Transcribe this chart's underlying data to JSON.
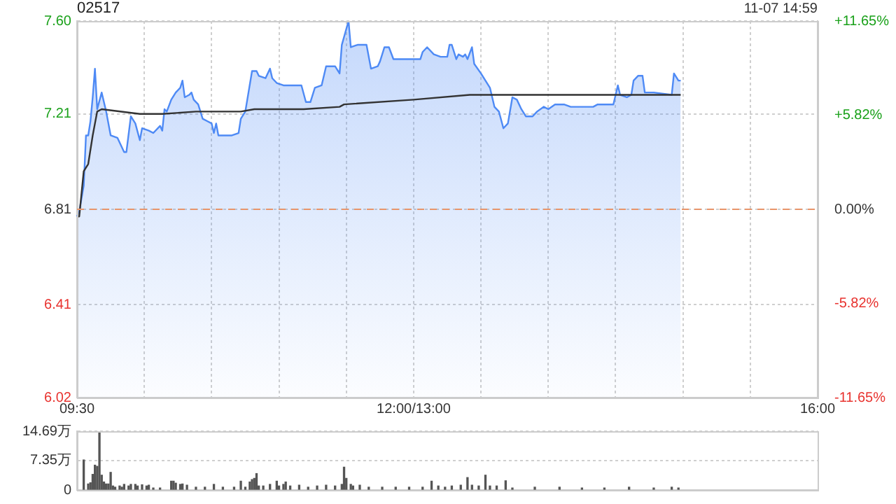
{
  "chart_data": [
    {
      "type": "area",
      "title": "02517",
      "annotations": [
        "11-07 14:59"
      ],
      "categories": [
        "09:30",
        null,
        null,
        null,
        null,
        null,
        null,
        null,
        null,
        null,
        null,
        null,
        null,
        null,
        null,
        null,
        null,
        null,
        null,
        null,
        null,
        null,
        null,
        null,
        null,
        null,
        null,
        null,
        null,
        null,
        null,
        null,
        null,
        null,
        null,
        null,
        null,
        null,
        null,
        null,
        null,
        null,
        null,
        null,
        null,
        null,
        null,
        null,
        null,
        null,
        null,
        null,
        null,
        null,
        null,
        null,
        null,
        null,
        null,
        null,
        null,
        null,
        null,
        null,
        null,
        null,
        null,
        null,
        null,
        null,
        null,
        null,
        null,
        null,
        null,
        null,
        null,
        null,
        null,
        null,
        null,
        null,
        null,
        null,
        null,
        null,
        null,
        null,
        null,
        null,
        null,
        null,
        null,
        null,
        null,
        null,
        null,
        null,
        null,
        null,
        null,
        null,
        null,
        null,
        null,
        null,
        null,
        null,
        null,
        null,
        null,
        null,
        null,
        null,
        null,
        null,
        null,
        null,
        null,
        null,
        null,
        null,
        null,
        null,
        null,
        null,
        null,
        null,
        null,
        null,
        null,
        null,
        null,
        null,
        null,
        null,
        null,
        null,
        null,
        null,
        null,
        null,
        null,
        null,
        null,
        null,
        null,
        null,
        null,
        null,
        "12:00/13:00",
        null,
        null,
        null,
        null,
        null,
        null,
        null,
        null,
        null,
        null,
        null,
        null,
        null,
        null,
        null,
        null,
        null,
        null,
        null,
        null,
        null,
        null,
        null,
        null,
        null,
        null,
        null,
        null,
        null,
        null,
        null,
        null,
        null,
        null,
        null,
        null,
        null,
        null,
        null,
        null,
        null,
        null,
        null,
        null,
        null,
        null,
        null,
        null,
        null,
        null,
        null,
        null,
        null,
        null,
        null,
        null,
        null,
        null,
        null,
        null,
        null,
        null,
        null,
        null,
        null,
        null,
        null,
        null,
        null,
        null,
        null,
        null,
        null,
        null,
        null,
        null,
        null,
        null,
        null,
        null,
        null,
        null,
        null,
        null,
        null,
        null,
        null,
        null,
        null,
        null,
        null,
        null,
        null,
        null,
        null,
        null,
        null,
        null,
        null,
        null,
        null,
        null,
        null,
        null,
        null,
        null,
        null,
        null,
        null,
        null,
        null,
        null,
        null,
        null,
        null,
        null,
        null,
        null,
        null,
        null,
        null,
        null,
        null,
        null,
        null,
        null,
        null,
        null,
        null,
        null,
        null,
        null,
        null,
        null,
        null,
        null,
        null,
        null,
        null,
        null,
        null,
        null,
        null,
        null,
        null,
        null,
        null,
        null,
        null,
        null,
        null,
        null,
        null,
        null,
        null,
        null,
        null,
        null,
        null,
        null,
        null,
        null,
        null,
        null,
        null,
        null,
        null,
        null,
        null,
        null,
        null,
        null,
        null,
        null,
        null,
        null,
        null,
        null,
        null,
        "16:00"
      ],
      "ylim": [
        6.02,
        7.6
      ],
      "yticks": [
        6.02,
        6.41,
        6.81,
        7.21,
        {
          "value": 7.6,
          "label": "7.60"
        }
      ],
      "y2lim": [
        -11.65,
        11.65
      ],
      "y2ticks": [
        {
          "value": -11.65,
          "label": "-11.65%"
        },
        {
          "value": -5.82,
          "label": "-5.82%"
        },
        {
          "value": 0,
          "label": "0.00%"
        },
        {
          "value": 5.82,
          "label": "+5.82%"
        },
        {
          "value": 11.65,
          "label": "+11.65%"
        }
      ],
      "grid": true,
      "legend": false,
      "ref_lines": [
        {
          "axis": "y",
          "value": 6.81,
          "color": "#e8956a",
          "line_style": "dashed"
        }
      ],
      "series": [
        {
          "type": "area",
          "color": "#4e8af5",
          "values": [
            6.78,
            6.8,
            null,
            6.91,
            7.12,
            7.12,
            7.18,
            7.28,
            7.4,
            7.23,
            null,
            7.3,
            null,
            7.22,
            null,
            7.12,
            null,
            null,
            7.11,
            null,
            null,
            7.05,
            7.05,
            null,
            7.2,
            null,
            7.17,
            null,
            7.1,
            7.15,
            null,
            null,
            7.14,
            null,
            7.13,
            null,
            null,
            7.16,
            7.14,
            7.23,
            7.22,
            null,
            7.27,
            null,
            7.3,
            null,
            7.32,
            7.35,
            7.28,
            null,
            7.29,
            7.3,
            7.27,
            null,
            7.25,
            null,
            7.19,
            null,
            7.18,
            null,
            7.17,
            7.13,
            7.17,
            7.12,
            null,
            null,
            null,
            null,
            null,
            7.12,
            null,
            null,
            7.13,
            7.19,
            null,
            7.22,
            null,
            null,
            7.39,
            null,
            7.39,
            7.37,
            null,
            null,
            7.36,
            null,
            7.4,
            7.36,
            null,
            7.34,
            null,
            null,
            7.33,
            null,
            7.33,
            null,
            null,
            null,
            null,
            null,
            7.33,
            null,
            7.26,
            null,
            7.26,
            null,
            7.32,
            null,
            null,
            7.33,
            null,
            7.41,
            null,
            null,
            null,
            7.41,
            null,
            7.38,
            7.5,
            null,
            null,
            7.6,
            7.49,
            null,
            null,
            7.5,
            null,
            null,
            null,
            7.5,
            null,
            7.4,
            null,
            null,
            7.41,
            7.43,
            null,
            7.49,
            null,
            7.49,
            null,
            7.44,
            null,
            null,
            null,
            null,
            null,
            null,
            null,
            null,
            null,
            null,
            null,
            7.44,
            7.47,
            null,
            7.49,
            null,
            null,
            7.46,
            null,
            null,
            7.45,
            null,
            null,
            7.45,
            7.5,
            7.5,
            null,
            7.44,
            7.46,
            null,
            7.45,
            7.46,
            7.44,
            null,
            7.49,
            7.42,
            null,
            null,
            7.38,
            null,
            null,
            null,
            7.32,
            null,
            7.24,
            null,
            7.22,
            null,
            7.15,
            null,
            7.17,
            null,
            7.28,
            null,
            7.27,
            null,
            7.23,
            null,
            7.2,
            null,
            null,
            7.2,
            null,
            7.22,
            null,
            null,
            7.24,
            null,
            7.23,
            null,
            null,
            7.25,
            null,
            null,
            null,
            7.25,
            null,
            null,
            7.24,
            null,
            null,
            null,
            null,
            null,
            null,
            null,
            null,
            null,
            7.24,
            null,
            7.25,
            null,
            null,
            null,
            null,
            null,
            null,
            7.25,
            null,
            7.33,
            7.29,
            null,
            null,
            7.28,
            null,
            7.29,
            7.35,
            null,
            7.37,
            null,
            7.37,
            7.3,
            null,
            null,
            null,
            7.3,
            null,
            null,
            null,
            null,
            null,
            null,
            null,
            7.29,
            7.38,
            null,
            7.35,
            7.35,
            null,
            null,
            null,
            null,
            null,
            null,
            null,
            null,
            null,
            null,
            null,
            null,
            null,
            null,
            null,
            null,
            null,
            null,
            null,
            null,
            null,
            null,
            null,
            null,
            null,
            null,
            null,
            null,
            null,
            null,
            null,
            null,
            null,
            null,
            null,
            null,
            null,
            null,
            null,
            null,
            null,
            null,
            null,
            null,
            null,
            null,
            null,
            null,
            null,
            null,
            null,
            null,
            null,
            null,
            null,
            null,
            null,
            null,
            null,
            null,
            null
          ]
        },
        {
          "type": "line",
          "color": "#333333",
          "values": [
            6.78,
            6.78,
            null,
            6.97,
            null,
            7.0,
            null,
            7.12,
            null,
            7.22,
            null,
            7.23,
            null,
            null,
            null,
            null,
            null,
            null,
            null,
            null,
            null,
            null,
            null,
            null,
            null,
            null,
            null,
            null,
            7.21,
            null,
            null,
            null,
            null,
            null,
            null,
            null,
            null,
            null,
            7.21,
            null,
            null,
            null,
            null,
            null,
            null,
            null,
            null,
            null,
            null,
            null,
            null,
            null,
            null,
            7.22,
            null,
            null,
            null,
            null,
            null,
            null,
            null,
            null,
            null,
            null,
            null,
            null,
            null,
            null,
            null,
            null,
            null,
            null,
            null,
            7.22,
            null,
            null,
            null,
            null,
            null,
            7.23,
            null,
            null,
            null,
            null,
            null,
            null,
            null,
            null,
            null,
            null,
            null,
            null,
            null,
            null,
            null,
            null,
            null,
            null,
            null,
            null,
            null,
            7.23,
            null,
            null,
            null,
            null,
            null,
            null,
            null,
            null,
            null,
            null,
            null,
            null,
            null,
            null,
            null,
            7.24,
            null,
            7.25,
            null,
            null,
            null,
            null,
            null,
            null,
            null,
            null,
            null,
            null,
            null,
            null,
            null,
            null,
            null,
            null,
            null,
            null,
            null,
            null,
            null,
            null,
            null,
            null,
            null,
            null,
            null,
            null,
            null,
            null,
            7.27,
            null,
            null,
            null,
            null,
            null,
            null,
            null,
            null,
            null,
            null,
            null,
            null,
            null,
            null,
            null,
            null,
            null,
            null,
            null,
            null,
            null,
            null,
            null,
            null,
            7.29,
            null,
            null,
            null,
            null,
            null,
            null,
            7.29,
            null,
            null,
            null,
            null,
            null,
            null,
            null,
            null,
            null,
            null,
            null,
            null,
            null,
            null,
            null,
            null,
            null,
            null,
            null,
            null,
            null,
            null,
            null,
            null,
            null,
            null,
            null,
            null,
            null,
            null,
            null,
            null,
            null,
            null,
            null,
            null,
            null,
            null,
            null,
            null,
            null,
            null,
            null,
            null,
            null,
            null,
            null,
            null,
            null,
            null,
            null,
            null,
            null,
            null,
            null,
            null,
            null,
            null,
            null,
            null,
            null,
            null,
            null,
            null,
            null,
            null,
            null,
            null,
            null,
            null,
            null,
            null,
            null,
            null,
            null,
            null,
            null,
            null,
            null,
            null,
            null,
            null,
            null,
            null,
            null,
            null,
            7.29,
            null,
            null,
            null,
            null,
            null,
            null,
            null,
            null,
            null,
            null,
            null,
            null,
            null,
            null,
            null,
            null,
            null,
            null,
            null,
            null,
            null,
            null,
            null,
            null,
            null,
            null,
            null,
            null,
            null,
            null,
            null,
            null,
            null,
            null,
            null,
            null,
            null,
            null,
            null,
            null,
            null,
            null,
            null,
            null,
            null,
            null,
            null,
            null,
            null,
            null,
            null,
            null,
            null,
            null,
            null,
            null,
            null,
            null,
            null,
            null,
            null
          ]
        }
      ]
    },
    {
      "type": "bar",
      "categories": [
        null,
        null,
        null,
        null,
        null,
        null,
        null,
        null,
        null,
        null,
        null,
        null,
        null,
        null,
        null,
        null,
        null,
        null,
        null,
        null,
        null,
        null,
        null,
        null,
        null,
        null,
        null,
        null,
        null,
        null,
        null,
        null,
        null,
        null,
        null,
        null,
        null,
        null,
        null,
        null,
        null,
        null,
        null,
        null,
        null,
        null,
        null,
        null,
        null,
        null,
        null,
        null,
        null,
        null,
        null,
        null,
        null,
        null,
        null,
        null,
        null,
        null,
        null,
        null,
        null,
        null,
        null,
        null,
        null,
        null,
        null,
        null,
        null,
        null,
        null,
        null,
        null,
        null,
        null,
        null,
        null,
        null,
        null,
        null,
        null,
        null,
        null,
        null,
        null,
        null,
        null,
        null,
        null,
        null,
        null,
        null,
        null,
        null,
        null,
        null,
        null,
        null,
        null,
        null,
        null,
        null,
        null,
        null,
        null,
        null,
        null,
        null,
        null,
        null,
        null,
        null,
        null,
        null,
        null,
        null,
        null,
        null,
        null,
        null,
        null,
        null,
        null,
        null,
        null,
        null,
        null,
        null,
        null,
        null,
        null,
        null,
        null,
        null,
        null,
        null,
        null,
        null,
        null,
        null,
        null,
        null,
        null,
        null,
        null,
        null,
        null,
        null,
        null,
        null,
        null,
        null,
        null,
        null,
        null,
        null,
        null,
        null,
        null,
        null,
        null,
        null,
        null,
        null,
        null,
        null,
        null,
        null,
        null,
        null,
        null,
        null,
        null,
        null,
        null,
        null,
        null,
        null,
        null,
        null,
        null,
        null,
        null,
        null,
        null,
        null,
        null,
        null,
        null,
        null,
        null,
        null,
        null,
        null,
        null,
        null,
        null,
        null,
        null,
        null,
        null,
        null,
        null,
        null,
        null,
        null,
        null,
        null,
        null,
        null,
        null,
        null,
        null,
        null,
        null,
        null,
        null,
        null,
        null,
        null,
        null,
        null,
        null,
        null,
        null,
        null,
        null,
        null,
        null,
        null,
        null,
        null,
        null,
        null,
        null,
        null,
        null,
        null,
        null,
        null,
        null,
        null,
        null,
        null,
        null,
        null,
        null,
        null,
        null,
        null,
        null,
        null,
        null,
        null,
        null,
        null,
        null,
        null,
        null,
        null,
        null,
        null,
        null,
        null,
        null,
        null,
        null,
        null,
        null,
        null,
        null,
        null,
        null,
        null,
        null,
        null,
        null,
        null,
        null,
        null,
        null,
        null,
        null,
        null,
        null,
        null,
        null,
        null,
        null,
        null,
        null,
        null,
        null,
        null,
        null,
        null,
        null,
        null,
        null,
        null,
        null,
        null,
        null,
        null,
        null,
        null,
        null,
        null,
        null,
        null,
        null,
        null,
        null,
        null,
        null,
        null,
        null,
        null,
        null,
        null,
        null,
        null,
        null,
        null,
        null,
        null,
        null
      ],
      "ylim": [
        0,
        14.69
      ],
      "yticks": [
        0,
        {
          "value": 7.35,
          "label": "7.35万"
        },
        {
          "value": 14.69,
          "label": "14.69万"
        }
      ],
      "grid": "y",
      "tick_labels": "y",
      "legend": false,
      "color": "#555555",
      "values": [
        null,
        null,
        null,
        7.5,
        null,
        1.5,
        1.8,
        3.9,
        6.2,
        5.9,
        14.6,
        3.7,
        2.0,
        1.5,
        1.5,
        4.4,
        1.0,
        0.7,
        null,
        1.0,
        0.7,
        1.4,
        null,
        1.0,
        1.4,
        null,
        1.4,
        1.0,
        null,
        1.3,
        null,
        1.0,
        1.2,
        null,
        0.5,
        null,
        null,
        0.5,
        null,
        null,
        null,
        null,
        2.2,
        2.2,
        1.7,
        null,
        1.4,
        1.5,
        null,
        1.2,
        null,
        null,
        null,
        0.7,
        null,
        null,
        null,
        0.7,
        null,
        null,
        null,
        1.4,
        null,
        null,
        null,
        0.7,
        null,
        null,
        null,
        null,
        0.7,
        null,
        null,
        2.2,
        null,
        0.7,
        null,
        2.0,
        2.6,
        2.9,
        4.1,
        1.0,
        null,
        1.0,
        null,
        null,
        1.4,
        null,
        null,
        2.2,
        1.0,
        null,
        1.4,
        2.0,
        null,
        1.0,
        null,
        null,
        null,
        1.2,
        null,
        null,
        null,
        0.7,
        null,
        null,
        null,
        1.0,
        null,
        null,
        null,
        1.2,
        null,
        null,
        null,
        1.0,
        null,
        null,
        1.4,
        5.7,
        2.9,
        null,
        1.4,
        1.0,
        null,
        null,
        1.2,
        null,
        null,
        null,
        0.7,
        null,
        null,
        null,
        null,
        null,
        0.7,
        null,
        null,
        null,
        null,
        null,
        0.7,
        null,
        null,
        null,
        null,
        null,
        0.7,
        null,
        null,
        null,
        null,
        null,
        0.7,
        null,
        null,
        null,
        2.2,
        null,
        null,
        1.0,
        null,
        null,
        0.7,
        null,
        null,
        1.0,
        null,
        null,
        null,
        1.2,
        null,
        null,
        3.1,
        null,
        1.2,
        null,
        null,
        1.0,
        null,
        null,
        3.7,
        null,
        1.0,
        null,
        null,
        1.0,
        null,
        null,
        null,
        2.3,
        null,
        null,
        0.5,
        null,
        null,
        null,
        null,
        null,
        null,
        null,
        null,
        null,
        0.7,
        null,
        null,
        null,
        null,
        null,
        null,
        null,
        null,
        null,
        null,
        0.7,
        null,
        null,
        null,
        null,
        null,
        null,
        null,
        null,
        null,
        0.5,
        null,
        null,
        null,
        null,
        null,
        null,
        null,
        null,
        null,
        0.5,
        null,
        null,
        null,
        null,
        null,
        null,
        null,
        null,
        null,
        null,
        0.7,
        null,
        null,
        null,
        null,
        null,
        null,
        null,
        null,
        null,
        null,
        0.5,
        null,
        null,
        null,
        null,
        null,
        null,
        null,
        0.7,
        null,
        null,
        0.5,
        null,
        null,
        null,
        null,
        null,
        null,
        null,
        null,
        null,
        null,
        null,
        null,
        null,
        null,
        null,
        null,
        null,
        null,
        null,
        null,
        null,
        null,
        null,
        null,
        null,
        null,
        null,
        null,
        null,
        null,
        null,
        null,
        null,
        null,
        null,
        null,
        null,
        null,
        null,
        null,
        null,
        null,
        null,
        null,
        null,
        null,
        null,
        null,
        null,
        null,
        null,
        null,
        null,
        null,
        null,
        null,
        null,
        null,
        null,
        null,
        null,
        null
      ]
    }
  ]
}
